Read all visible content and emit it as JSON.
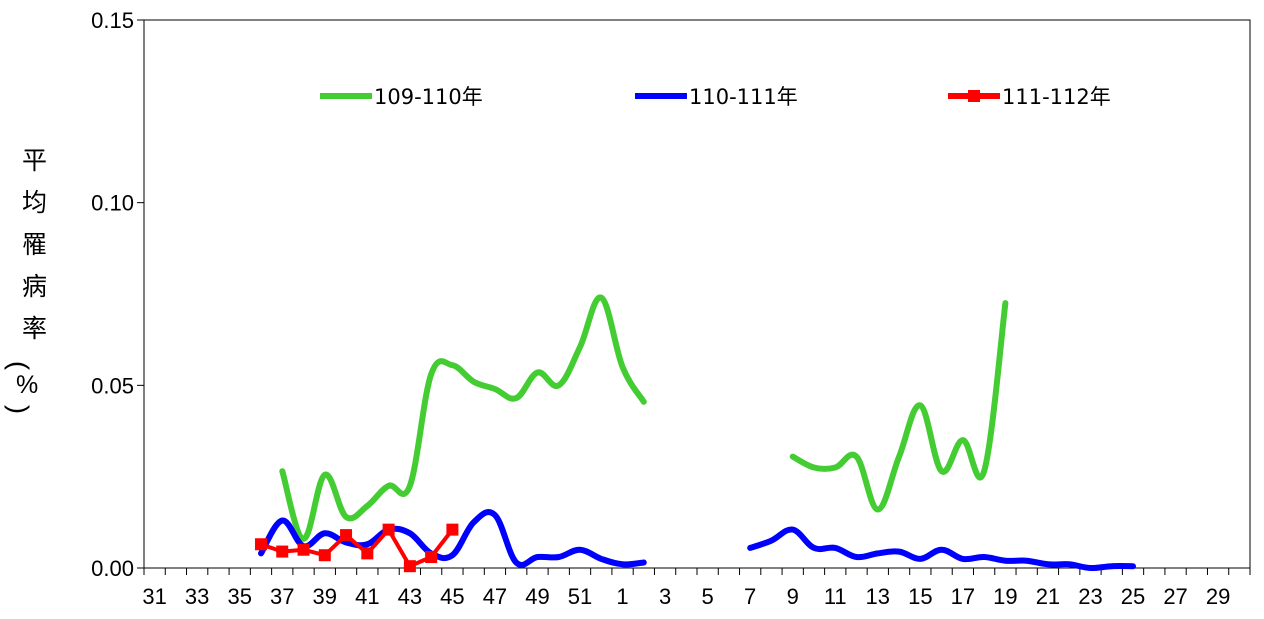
{
  "chart_data": {
    "type": "line",
    "ylabel_chars": [
      "平",
      "均",
      "罹",
      "病",
      "率",
      "(",
      "%",
      ")"
    ],
    "ylim": [
      0,
      0.15
    ],
    "y_ticks": [
      "0.00",
      "0.05",
      "0.10",
      "0.15"
    ],
    "y_tick_values": [
      0,
      0.05,
      0.1,
      0.15
    ],
    "x_categories": [
      31,
      32,
      33,
      34,
      35,
      36,
      37,
      38,
      39,
      40,
      41,
      42,
      43,
      44,
      45,
      46,
      47,
      48,
      49,
      50,
      51,
      52,
      1,
      2,
      3,
      4,
      5,
      6,
      7,
      8,
      9,
      10,
      11,
      12,
      13,
      14,
      15,
      16,
      17,
      18,
      19,
      20,
      21,
      22,
      23,
      24,
      25,
      26,
      27,
      28,
      29,
      30
    ],
    "x_tick_labels": [
      "31",
      "33",
      "35",
      "37",
      "39",
      "41",
      "43",
      "45",
      "47",
      "49",
      "51",
      "1",
      "3",
      "5",
      "7",
      "9",
      "11",
      "13",
      "15",
      "17",
      "19",
      "21",
      "23",
      "25",
      "27",
      "29"
    ],
    "legend_position": "top",
    "grid": false,
    "series": [
      {
        "name": "109-110年",
        "color": "#44cc33",
        "marker": "none",
        "segments": [
          {
            "x": [
              37,
              38,
              39,
              40,
              41,
              42,
              43,
              44,
              45,
              46,
              47,
              48,
              49,
              50,
              51,
              52,
              1,
              2
            ],
            "y": [
              0.0265,
              0.008,
              0.0255,
              0.014,
              0.017,
              0.0225,
              0.0225,
              0.053,
              0.0555,
              0.051,
              0.049,
              0.0465,
              0.0535,
              0.05,
              0.0605,
              0.074,
              0.055,
              0.0455
            ]
          },
          {
            "x": [
              9,
              10,
              11,
              12,
              13,
              14,
              15,
              16,
              17,
              18,
              19
            ],
            "y": [
              0.0305,
              0.0275,
              0.0275,
              0.0305,
              0.016,
              0.0305,
              0.0445,
              0.0265,
              0.035,
              0.0265,
              0.0725
            ]
          }
        ]
      },
      {
        "name": "110-111年",
        "color": "#0000ff",
        "marker": "none",
        "segments": [
          {
            "x": [
              36,
              37,
              38,
              39,
              40,
              41,
              42,
              43,
              44,
              45,
              46,
              47,
              48,
              49,
              50,
              51,
              52,
              1,
              2
            ],
            "y": [
              0.004,
              0.013,
              0.006,
              0.0095,
              0.007,
              0.0065,
              0.0105,
              0.0095,
              0.004,
              0.0035,
              0.0125,
              0.0145,
              0.0015,
              0.003,
              0.003,
              0.005,
              0.0025,
              0.001,
              0.0015
            ]
          },
          {
            "x": [
              7,
              8,
              9,
              10,
              11,
              12,
              13,
              14,
              15,
              16,
              17,
              18,
              19,
              20,
              21,
              22,
              23,
              24,
              25
            ],
            "y": [
              0.0055,
              0.0075,
              0.0105,
              0.0055,
              0.0055,
              0.003,
              0.004,
              0.0045,
              0.0025,
              0.005,
              0.0025,
              0.003,
              0.002,
              0.002,
              0.001,
              0.001,
              0.0,
              0.0005,
              0.0005
            ]
          }
        ]
      },
      {
        "name": "111-112年",
        "color": "#ff0000",
        "marker": "square",
        "segments": [
          {
            "x": [
              36,
              37,
              38,
              39,
              40,
              41,
              42,
              43,
              44,
              45
            ],
            "y": [
              0.0065,
              0.0045,
              0.005,
              0.0035,
              0.009,
              0.004,
              0.0105,
              0.0005,
              0.003,
              0.0105
            ]
          }
        ]
      }
    ]
  }
}
